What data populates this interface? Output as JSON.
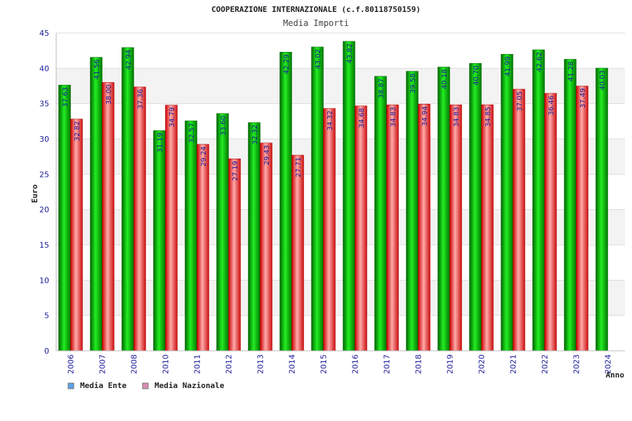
{
  "chart_data": {
    "type": "bar",
    "title": "COOPERAZIONE INTERNAZIONALE (c.f.80118750159)",
    "subtitle": "Media Importi",
    "ylabel": "Euro",
    "xlabel": "Anno",
    "ylim": [
      0,
      45
    ],
    "yticks": [
      "0",
      "5",
      "10",
      "15",
      "20",
      "25",
      "30",
      "35",
      "40",
      "45"
    ],
    "grid": true,
    "legend_position": "bottom-left",
    "categories": [
      "2006",
      "2007",
      "2008",
      "2010",
      "2011",
      "2012",
      "2013",
      "2014",
      "2015",
      "2016",
      "2017",
      "2018",
      "2019",
      "2020",
      "2021",
      "2022",
      "2023",
      "2024"
    ],
    "series": [
      {
        "name": "Media Ente",
        "color": "#00b000",
        "legend_color": "#5ba3e6",
        "values": [
          37.63,
          41.56,
          42.94,
          31.19,
          32.57,
          33.6,
          32.32,
          42.29,
          43.02,
          43.82,
          38.87,
          39.58,
          40.18,
          40.7,
          41.99,
          42.62,
          41.28,
          40.03
        ],
        "labels": [
          "37.63",
          "41.56",
          "42.94",
          "31.19",
          "32.57",
          "33.60",
          "32.32",
          "42.29",
          "43.02",
          "43.82",
          "38.87",
          "39.58",
          "40.18",
          "40.70",
          "41.99",
          "42.62",
          "41.28",
          "40.03"
        ]
      },
      {
        "name": "Media Nazionale",
        "color": "#e02828",
        "legend_color": "#d98cb5",
        "values": [
          32.82,
          38.0,
          37.36,
          34.79,
          29.24,
          27.19,
          29.43,
          27.71,
          34.32,
          34.68,
          34.83,
          34.94,
          34.83,
          34.85,
          37.05,
          36.46,
          37.49,
          null
        ],
        "labels": [
          "32.82",
          "38.00",
          "37.36",
          "34.79",
          "29.24",
          "27.19",
          "29.43",
          "27.71",
          "34.32",
          "34.68",
          "34.83",
          "34.94",
          "34.83",
          "34.85",
          "37.05",
          "36.46",
          "37.49",
          null
        ]
      }
    ]
  }
}
